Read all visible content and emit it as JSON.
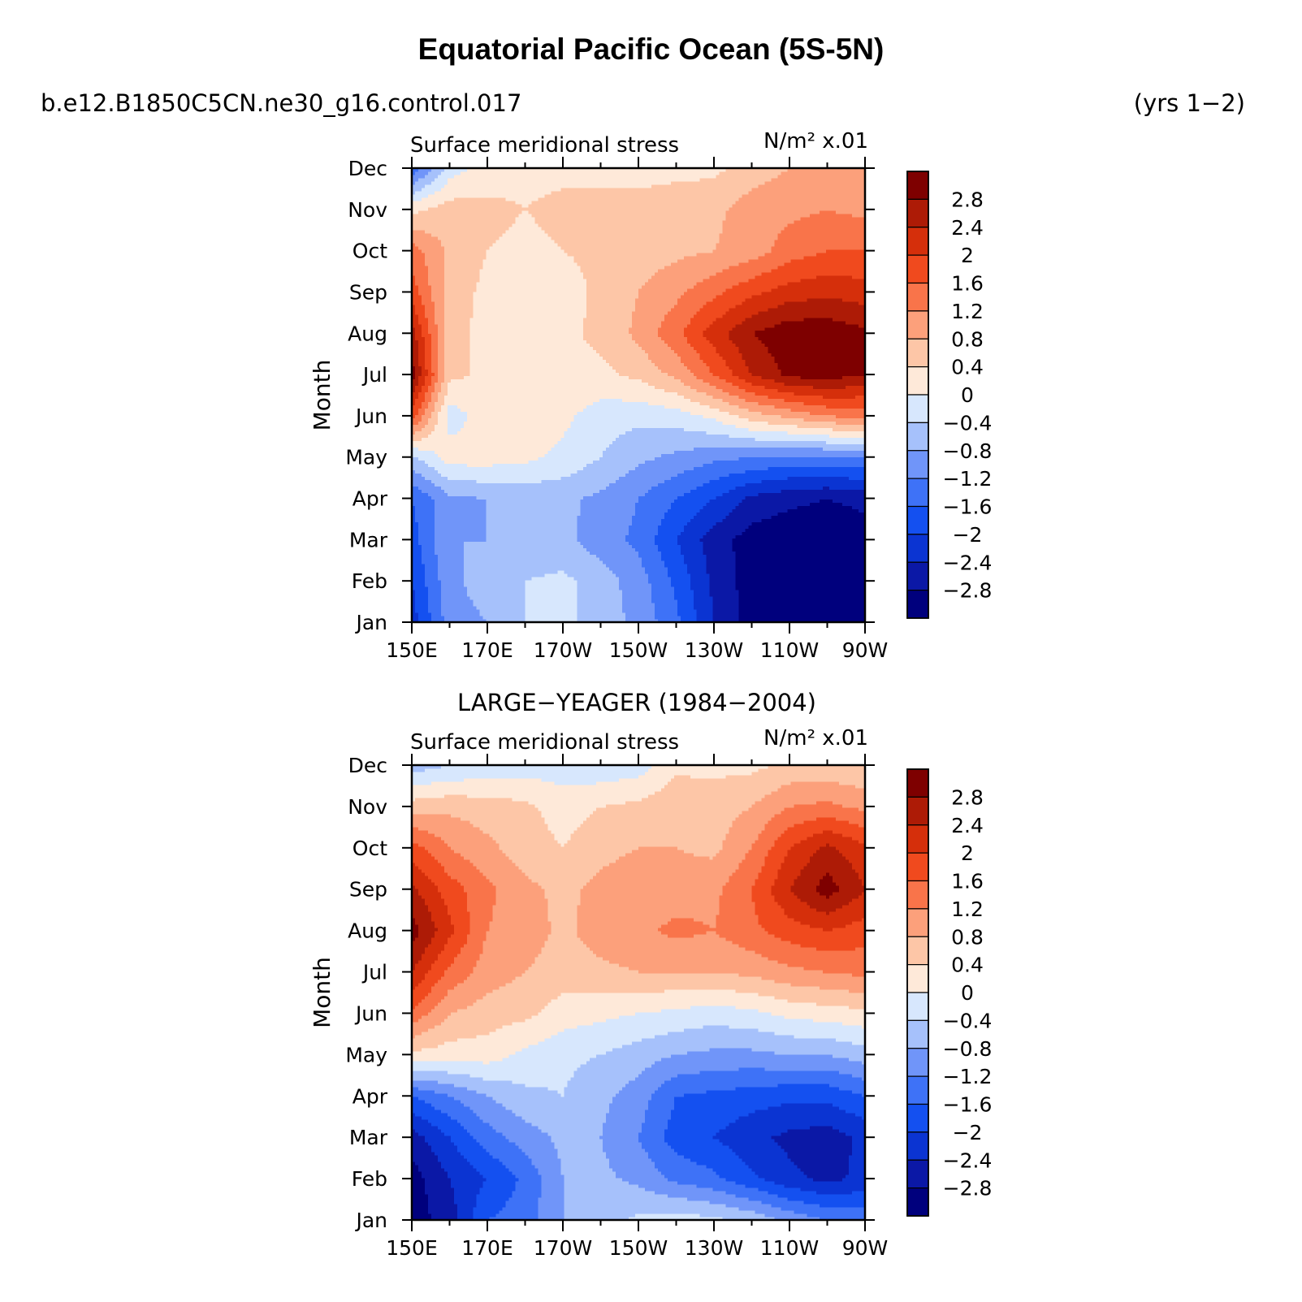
{
  "title": "Equatorial Pacific Ocean (5S-5N)",
  "case_name": "b.e12.B1850C5CN.ne30_g16.control.017",
  "years_label": "(yrs 1−2)",
  "chart_data": [
    {
      "type": "heatmap",
      "title": "",
      "left_label": "Surface meridional stress",
      "right_label": "N/m² x.01",
      "xlabel": "",
      "ylabel": "Month",
      "x_ticks": [
        "150E",
        "170E",
        "170W",
        "150W",
        "130W",
        "110W",
        "90W"
      ],
      "x_lon_east": [
        150,
        170,
        190,
        210,
        230,
        250,
        270
      ],
      "xlim_lon_east": [
        150,
        270
      ],
      "y_ticks": [
        "Jan",
        "Feb",
        "Mar",
        "Apr",
        "May",
        "Jun",
        "Jul",
        "Aug",
        "Sep",
        "Oct",
        "Nov",
        "Dec"
      ],
      "z_levels": [
        -2.8,
        -2.4,
        -2,
        -1.6,
        -1.2,
        -0.8,
        -0.4,
        0,
        0.4,
        0.8,
        1.2,
        1.6,
        2,
        2.4,
        2.8
      ],
      "colorbar_labels": [
        "2.8",
        "2.4",
        "2",
        "1.6",
        "1.2",
        "0.8",
        "0.4",
        "0",
        "−0.4",
        "−0.8",
        "−1.2",
        "−1.6",
        "−2",
        "−2.4",
        "−2.8"
      ],
      "x_grid_lon_east": [
        150,
        160,
        170,
        180,
        190,
        200,
        210,
        220,
        230,
        240,
        250,
        260,
        270
      ],
      "values": [
        [
          -2.2,
          -1.0,
          -0.8,
          -0.4,
          -0.3,
          -0.6,
          -0.9,
          -1.5,
          -2.4,
          -3.0,
          -3.1,
          -3.2,
          -3.1
        ],
        [
          -2.0,
          -0.9,
          -0.6,
          -0.4,
          -0.3,
          -0.6,
          -1.0,
          -1.7,
          -2.5,
          -3.0,
          -3.2,
          -3.2,
          -3.1
        ],
        [
          -1.8,
          -0.8,
          -0.8,
          -0.7,
          -0.7,
          -1.0,
          -1.3,
          -2.0,
          -2.6,
          -3.0,
          -3.1,
          -3.1,
          -3.0
        ],
        [
          -1.6,
          -0.9,
          -0.8,
          -0.7,
          -0.7,
          -0.9,
          -1.2,
          -1.6,
          -2.0,
          -2.5,
          -2.7,
          -2.8,
          -2.7
        ],
        [
          -0.5,
          0.2,
          0.2,
          0.1,
          -0.1,
          -0.4,
          -0.7,
          -0.9,
          -1.1,
          -1.2,
          -1.3,
          -1.3,
          -1.2
        ],
        [
          1.8,
          -0.2,
          0.2,
          0.2,
          0.1,
          -0.2,
          -0.3,
          -0.2,
          0.1,
          0.6,
          0.9,
          1.2,
          1.3
        ],
        [
          3.0,
          0.5,
          0.3,
          0.3,
          0.3,
          0.3,
          0.5,
          0.9,
          1.6,
          2.4,
          2.9,
          3.0,
          2.8
        ],
        [
          2.6,
          0.5,
          0.3,
          0.2,
          0.3,
          0.5,
          0.9,
          1.5,
          2.2,
          2.8,
          3.1,
          3.1,
          2.9
        ],
        [
          1.8,
          0.6,
          0.3,
          0.2,
          0.2,
          0.5,
          0.8,
          1.1,
          1.5,
          1.9,
          2.2,
          2.3,
          2.2
        ],
        [
          1.4,
          0.7,
          0.4,
          0.3,
          0.4,
          0.5,
          0.6,
          0.7,
          0.8,
          1.0,
          1.4,
          1.6,
          1.6
        ],
        [
          0.3,
          0.6,
          0.5,
          0.4,
          0.5,
          0.5,
          0.5,
          0.6,
          0.7,
          1.0,
          1.1,
          1.2,
          1.1
        ],
        [
          -1.5,
          -0.2,
          0.2,
          0.3,
          0.3,
          0.3,
          0.3,
          0.3,
          0.3,
          0.6,
          0.8,
          0.9,
          0.8
        ]
      ]
    },
    {
      "type": "heatmap",
      "title": "LARGE−YEAGER (1984−2004)",
      "left_label": "Surface meridional stress",
      "right_label": "N/m² x.01",
      "xlabel": "",
      "ylabel": "Month",
      "x_ticks": [
        "150E",
        "170E",
        "170W",
        "150W",
        "130W",
        "110W",
        "90W"
      ],
      "x_lon_east": [
        150,
        170,
        190,
        210,
        230,
        250,
        270
      ],
      "xlim_lon_east": [
        150,
        270
      ],
      "y_ticks": [
        "Jan",
        "Feb",
        "Mar",
        "Apr",
        "May",
        "Jun",
        "Jul",
        "Aug",
        "Sep",
        "Oct",
        "Nov",
        "Dec"
      ],
      "z_levels": [
        -2.8,
        -2.4,
        -2,
        -1.6,
        -1.2,
        -0.8,
        -0.4,
        0,
        0.4,
        0.8,
        1.2,
        1.6,
        2,
        2.4,
        2.8
      ],
      "colorbar_labels": [
        "2.8",
        "2.4",
        "2",
        "1.6",
        "1.2",
        "0.8",
        "0.4",
        "0",
        "−0.4",
        "−0.8",
        "−1.2",
        "−1.6",
        "−2",
        "−2.4",
        "−2.8"
      ],
      "x_grid_lon_east": [
        150,
        160,
        170,
        180,
        190,
        200,
        210,
        220,
        230,
        240,
        250,
        260,
        270
      ],
      "values": [
        [
          -3.0,
          -2.6,
          -1.6,
          -1.4,
          -0.8,
          -0.6,
          -0.3,
          -0.2,
          -0.3,
          -0.5,
          -0.9,
          -1.2,
          -1.3
        ],
        [
          -3.0,
          -2.4,
          -2.0,
          -1.5,
          -0.8,
          -0.7,
          -0.9,
          -1.3,
          -1.5,
          -1.9,
          -2.3,
          -2.5,
          -2.3
        ],
        [
          -2.6,
          -2.0,
          -1.4,
          -1.0,
          -0.7,
          -0.8,
          -1.2,
          -1.8,
          -2.0,
          -2.3,
          -2.5,
          -2.6,
          -2.3
        ],
        [
          -1.6,
          -1.2,
          -0.8,
          -0.5,
          -0.4,
          -0.7,
          -1.0,
          -1.6,
          -1.7,
          -1.8,
          -1.9,
          -1.9,
          -1.6
        ],
        [
          0.3,
          0.2,
          0.2,
          -0.1,
          -0.3,
          -0.4,
          -0.6,
          -0.8,
          -0.9,
          -0.9,
          -0.8,
          -0.8,
          -0.6
        ],
        [
          1.5,
          0.8,
          0.6,
          0.5,
          0.2,
          0.1,
          0.0,
          -0.1,
          -0.2,
          -0.1,
          0.1,
          0.2,
          0.3
        ],
        [
          2.4,
          1.5,
          1.0,
          0.8,
          0.6,
          0.7,
          0.8,
          0.8,
          0.8,
          0.9,
          1.1,
          1.2,
          1.3
        ],
        [
          3.0,
          2.1,
          1.2,
          1.0,
          0.7,
          1.0,
          1.1,
          1.3,
          1.2,
          1.5,
          1.8,
          2.0,
          1.8
        ],
        [
          2.5,
          1.8,
          1.3,
          0.9,
          0.7,
          0.9,
          1.0,
          1.0,
          1.1,
          1.6,
          2.4,
          3.0,
          2.4
        ],
        [
          1.8,
          1.2,
          0.9,
          0.6,
          0.4,
          0.7,
          0.8,
          0.8,
          0.7,
          1.2,
          2.0,
          2.5,
          2.1
        ],
        [
          0.6,
          0.7,
          0.6,
          0.5,
          0.2,
          0.4,
          0.5,
          0.7,
          0.6,
          0.8,
          1.2,
          1.3,
          1.1
        ],
        [
          -0.6,
          -0.4,
          -0.3,
          -0.2,
          -0.2,
          -0.3,
          -0.2,
          0.3,
          0.3,
          0.3,
          0.5,
          0.5,
          0.4
        ]
      ]
    }
  ],
  "colors": {
    "palette": [
      "#00007d",
      "#0b18a6",
      "#0b34d2",
      "#1450f0",
      "#3e72f7",
      "#7095f9",
      "#a6c1fb",
      "#d7e7fd",
      "#fee9d9",
      "#fdc6a7",
      "#fca07b",
      "#f9744a",
      "#f04a1e",
      "#d52f0b",
      "#ad1b06",
      "#7e0000"
    ]
  }
}
